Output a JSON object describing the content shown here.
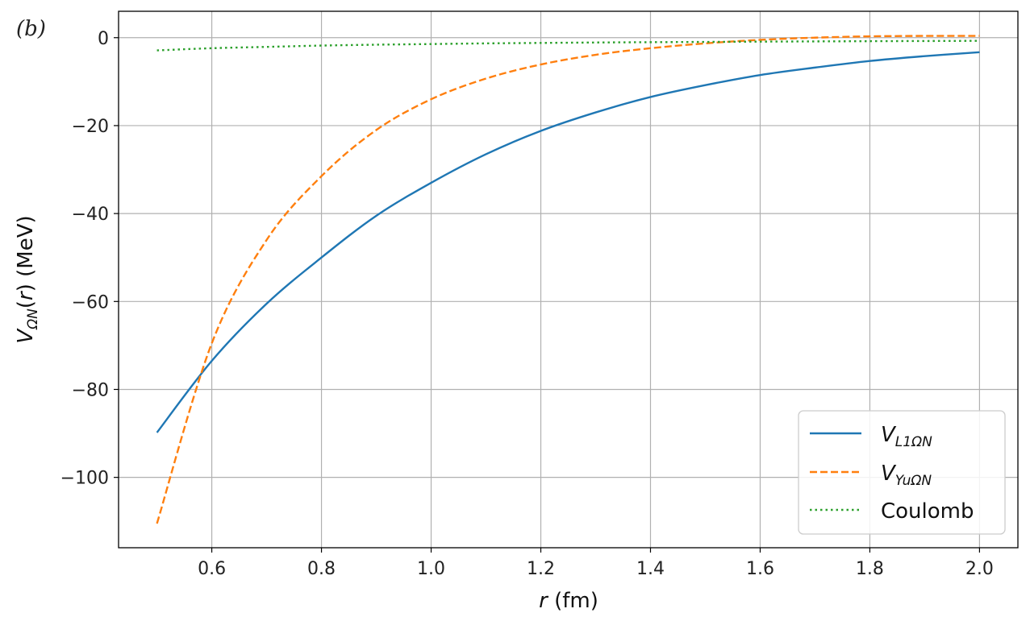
{
  "panel_tag": "(b)",
  "chart_data": {
    "type": "line",
    "title": "",
    "xlabel": {
      "var": "r",
      "unit": " (fm)"
    },
    "ylabel": {
      "var": "V",
      "sub": "ΩN",
      "arg": "(",
      "argvar": "r",
      "tail": ") (MeV)"
    },
    "xlim": [
      0.43,
      2.07
    ],
    "ylim": [
      -116,
      6
    ],
    "xticks": [
      0.6,
      0.8,
      1.0,
      1.2,
      1.4,
      1.6,
      1.8,
      2.0
    ],
    "xtick_labels": [
      "0.6",
      "0.8",
      "1.0",
      "1.2",
      "1.4",
      "1.6",
      "1.8",
      "2.0"
    ],
    "yticks": [
      0,
      -20,
      -40,
      -60,
      -80,
      -100
    ],
    "ytick_labels": [
      "0",
      "−20",
      "−40",
      "−60",
      "−80",
      "−100"
    ],
    "grid": true,
    "legend_position": "lower-right",
    "x": [
      0.5,
      0.6,
      0.7,
      0.8,
      0.9,
      1.0,
      1.1,
      1.2,
      1.3,
      1.4,
      1.5,
      1.6,
      1.7,
      1.8,
      1.9,
      2.0
    ],
    "series": [
      {
        "name": {
          "main": "V",
          "sub": "L1ΩN"
        },
        "color": "#1f77b4",
        "dash": "solid",
        "values": [
          -89.8,
          -73.5,
          -60.5,
          -50.0,
          -40.5,
          -33.0,
          -26.5,
          -21.2,
          -17.0,
          -13.5,
          -10.8,
          -8.5,
          -6.8,
          -5.3,
          -4.2,
          -3.3
        ]
      },
      {
        "name": {
          "main": "V",
          "sub": "YuΩN"
        },
        "color": "#ff7f0e",
        "dash": "dashed",
        "values": [
          -110.5,
          -69.5,
          -46.0,
          -31.5,
          -21.0,
          -14.0,
          -9.3,
          -6.1,
          -3.9,
          -2.4,
          -1.3,
          -0.5,
          0.0,
          0.3,
          0.4,
          0.4
        ]
      },
      {
        "name": {
          "main": "Coulomb",
          "sub": ""
        },
        "color": "#2ca02c",
        "dash": "dotted",
        "values": [
          -2.9,
          -2.4,
          -2.1,
          -1.8,
          -1.6,
          -1.45,
          -1.3,
          -1.2,
          -1.1,
          -1.03,
          -0.97,
          -0.9,
          -0.85,
          -0.8,
          -0.76,
          -0.72
        ]
      }
    ]
  }
}
